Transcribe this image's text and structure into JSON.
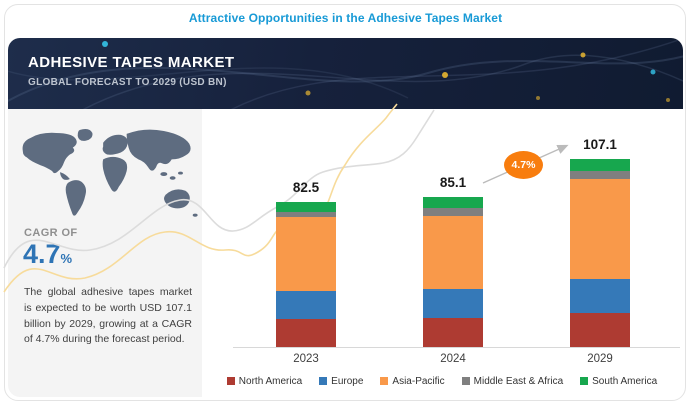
{
  "page_title": "Attractive Opportunities in the Adhesive Tapes Market",
  "banner": {
    "title": "ADHESIVE TAPES MARKET",
    "subtitle": "GLOBAL FORECAST TO 2029 (USD BN)"
  },
  "sidebar": {
    "cagr_label": "CAGR OF",
    "cagr_value": "4.7",
    "cagr_unit": "%",
    "description": "The global adhesive tapes market is expected to be worth USD 107.1 billion by 2029, growing at a CAGR of 4.7% during the forecast period."
  },
  "chart_data": {
    "type": "bar",
    "stacked": true,
    "title": "Attractive Opportunities in the Adhesive Tapes Market",
    "unit": "USD BN",
    "categories": [
      "2023",
      "2024",
      "2029"
    ],
    "totals": [
      82.5,
      85.1,
      107.1
    ],
    "total_labels": [
      "82.5",
      "85.1",
      "107.1"
    ],
    "series": [
      {
        "name": "North America",
        "color": "#AE3B32",
        "values": [
          16.0,
          16.5,
          19.6
        ]
      },
      {
        "name": "Europe",
        "color": "#3579B8",
        "values": [
          16.0,
          16.5,
          19.1
        ]
      },
      {
        "name": "Asia-Pacific",
        "color": "#F9994A",
        "values": [
          42.0,
          41.8,
          56.9
        ]
      },
      {
        "name": "Middle East & Africa",
        "color": "#7F7F7F",
        "values": [
          3.0,
          4.5,
          4.4
        ]
      },
      {
        "name": "South America",
        "color": "#17A74E",
        "values": [
          5.5,
          5.8,
          7.1
        ]
      }
    ],
    "growth_badge": "4.7%",
    "legend_position": "bottom",
    "grid": false
  },
  "colors": {
    "title_blue": "#189AD6",
    "cagr_blue": "#2E74B5",
    "banner_bg": "#16213C",
    "sidebar_bg": "#F4F4F4",
    "map_fill": "#5E6C80",
    "badge_orange": "#F87D0E",
    "axis_gray": "#D8D8D8",
    "wave_gray": "#DCDCDC",
    "wave_gold": "#F7DB9B"
  }
}
